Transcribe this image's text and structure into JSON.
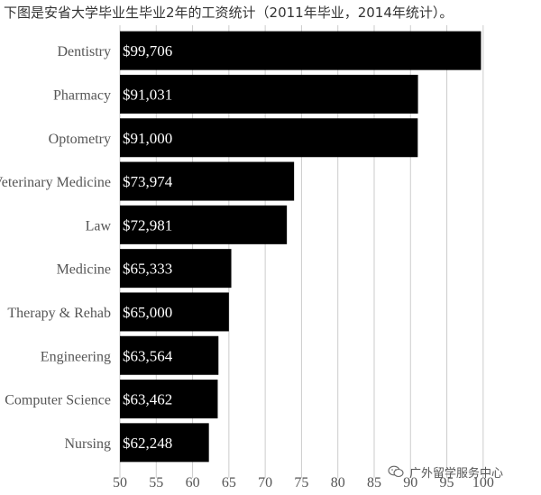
{
  "page_title": "下图是安省大学毕业生毕业2年的工资统计（2011年毕业，2014年统计）。",
  "watermark": {
    "text": "广外留学服务中心",
    "icon": "wechat-icon"
  },
  "chart_data": {
    "type": "bar",
    "orientation": "horizontal",
    "title": "下图是安省大学毕业生毕业2年的工资统计（2011年毕业，2014年统计）。",
    "xlabel": "",
    "ylabel": "",
    "categories": [
      "Dentistry",
      "Pharmacy",
      "Optometry",
      "Veterinary Medicine",
      "Law",
      "Medicine",
      "Therapy & Rehab",
      "Engineering",
      "Computer Science",
      "Nursing"
    ],
    "values": [
      99706,
      91031,
      91000,
      73974,
      72981,
      65333,
      65000,
      63564,
      63462,
      62248
    ],
    "data_labels": [
      "$99,706",
      "$91,031",
      "$91,000",
      "$73,974",
      "$72,981",
      "$65,333",
      "$65,000",
      "$63,564",
      "$63,462",
      "$62,248"
    ],
    "xlim": [
      50000,
      103000
    ],
    "x_ticks": [
      50,
      55,
      60,
      65,
      70,
      75,
      80,
      85,
      90,
      95,
      100
    ],
    "x_tick_unit": 1000,
    "grid": true,
    "legend": "none",
    "bar_color": "#000000",
    "label_color": "#ffffff",
    "grid_color": "#cccccc"
  }
}
